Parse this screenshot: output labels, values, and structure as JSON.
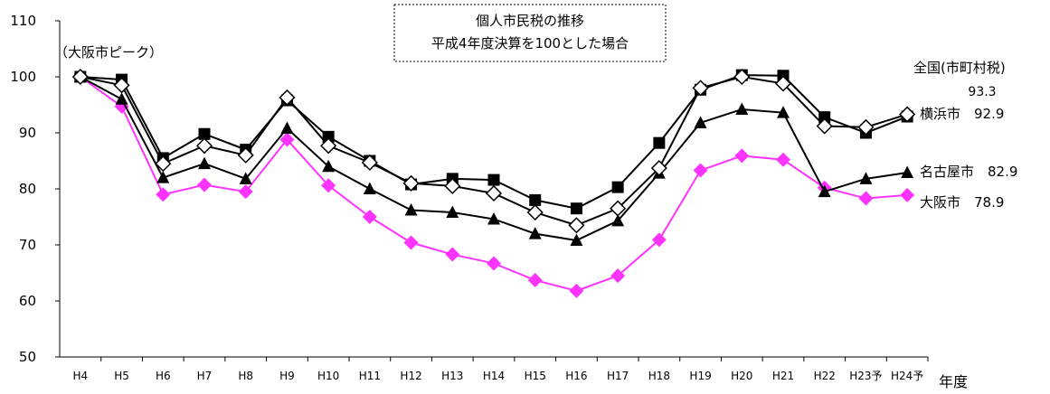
{
  "chart_data": {
    "type": "line",
    "title": "個人市民税の推移",
    "subtitle": "平成4年度決算を100とした場合",
    "xlabel": "年度",
    "ylabel": "",
    "ylim": [
      50,
      110
    ],
    "yticks": [
      "50",
      "60",
      "70",
      "80",
      "90",
      "100",
      "110"
    ],
    "categories": [
      "H4",
      "H5",
      "H6",
      "H7",
      "H8",
      "H9",
      "H10",
      "H11",
      "H12",
      "H13",
      "H14",
      "H15",
      "H16",
      "H17",
      "H18",
      "H19",
      "H20",
      "H21",
      "H22",
      "H23予",
      "H24予"
    ],
    "annotation": "（大阪市ピーク）",
    "series": [
      {
        "name": "全国(市町村税)",
        "end_label": "全国(市町村税)",
        "end_value_label": "93.3",
        "marker": "open-diamond",
        "color": "#000000",
        "values": [
          100,
          98.5,
          84.5,
          87.7,
          86.0,
          96.3,
          87.7,
          84.7,
          81.0,
          80.5,
          79.2,
          75.8,
          73.5,
          76.5,
          83.7,
          98.0,
          100.0,
          98.8,
          91.2,
          91.0,
          93.3
        ]
      },
      {
        "name": "横浜市",
        "end_label": "横浜市　92.9",
        "marker": "square",
        "color": "#000000",
        "values": [
          100,
          99.5,
          85.5,
          89.8,
          87.0,
          95.8,
          89.3,
          85.0,
          80.8,
          81.8,
          81.6,
          78.0,
          76.5,
          80.3,
          88.2,
          97.7,
          100.3,
          100.2,
          92.8,
          90.0,
          92.9
        ]
      },
      {
        "name": "名古屋市",
        "end_label": "名古屋市　82.9",
        "marker": "triangle",
        "color": "#000000",
        "values": [
          100,
          96.0,
          82.0,
          84.5,
          81.8,
          90.8,
          84.0,
          80.0,
          76.2,
          75.8,
          74.6,
          72.0,
          70.8,
          74.3,
          82.8,
          91.8,
          94.2,
          93.6,
          79.5,
          81.8,
          82.9
        ]
      },
      {
        "name": "大阪市",
        "end_label": "大阪市　78.9",
        "marker": "filled-diamond",
        "color": "#ff33ff",
        "values": [
          100,
          94.7,
          79.0,
          80.7,
          79.5,
          88.8,
          80.6,
          75.0,
          70.4,
          68.3,
          66.7,
          63.7,
          61.8,
          64.5,
          70.9,
          83.3,
          85.9,
          85.2,
          80.2,
          78.3,
          78.9
        ]
      }
    ]
  }
}
